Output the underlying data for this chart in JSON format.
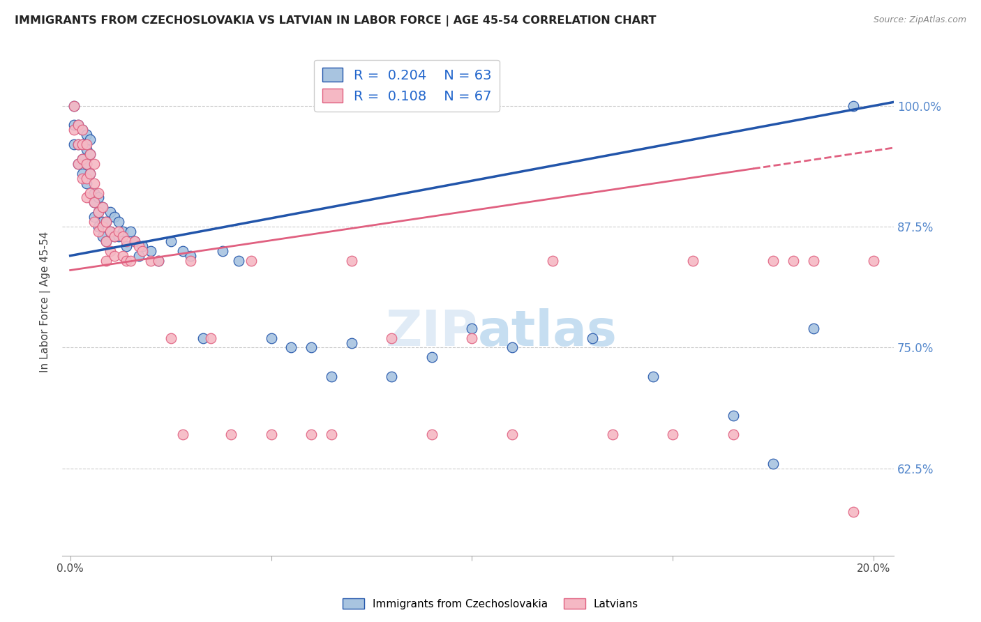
{
  "title": "IMMIGRANTS FROM CZECHOSLOVAKIA VS LATVIAN IN LABOR FORCE | AGE 45-54 CORRELATION CHART",
  "source": "Source: ZipAtlas.com",
  "ylabel_label": "In Labor Force | Age 45-54",
  "legend1_r": "0.204",
  "legend1_n": "63",
  "legend2_r": "0.108",
  "legend2_n": "67",
  "legend1_label": "Immigrants from Czechoslovakia",
  "legend2_label": "Latvians",
  "blue_color": "#a8c4e0",
  "pink_color": "#f5b8c4",
  "line_blue": "#2255aa",
  "line_pink": "#e06080",
  "blue_x": [
    0.001,
    0.001,
    0.001,
    0.002,
    0.002,
    0.002,
    0.003,
    0.003,
    0.003,
    0.003,
    0.004,
    0.004,
    0.004,
    0.004,
    0.005,
    0.005,
    0.005,
    0.006,
    0.006,
    0.006,
    0.007,
    0.007,
    0.007,
    0.008,
    0.008,
    0.008,
    0.009,
    0.009,
    0.01,
    0.01,
    0.011,
    0.011,
    0.012,
    0.012,
    0.013,
    0.014,
    0.015,
    0.016,
    0.017,
    0.018,
    0.02,
    0.022,
    0.025,
    0.028,
    0.03,
    0.033,
    0.038,
    0.042,
    0.05,
    0.055,
    0.06,
    0.065,
    0.07,
    0.08,
    0.09,
    0.1,
    0.11,
    0.13,
    0.145,
    0.165,
    0.175,
    0.185,
    0.195
  ],
  "blue_y": [
    1.0,
    0.98,
    0.96,
    0.98,
    0.96,
    0.94,
    0.975,
    0.96,
    0.945,
    0.93,
    0.97,
    0.955,
    0.94,
    0.92,
    0.965,
    0.95,
    0.93,
    0.91,
    0.9,
    0.885,
    0.905,
    0.89,
    0.875,
    0.895,
    0.88,
    0.865,
    0.88,
    0.86,
    0.89,
    0.87,
    0.885,
    0.865,
    0.88,
    0.865,
    0.87,
    0.855,
    0.87,
    0.86,
    0.845,
    0.855,
    0.85,
    0.84,
    0.86,
    0.85,
    0.845,
    0.76,
    0.85,
    0.84,
    0.76,
    0.75,
    0.75,
    0.72,
    0.755,
    0.72,
    0.74,
    0.77,
    0.75,
    0.76,
    0.72,
    0.68,
    0.63,
    0.77,
    1.0
  ],
  "pink_x": [
    0.001,
    0.001,
    0.002,
    0.002,
    0.002,
    0.003,
    0.003,
    0.003,
    0.003,
    0.004,
    0.004,
    0.004,
    0.004,
    0.005,
    0.005,
    0.005,
    0.006,
    0.006,
    0.006,
    0.006,
    0.007,
    0.007,
    0.007,
    0.008,
    0.008,
    0.009,
    0.009,
    0.009,
    0.01,
    0.01,
    0.011,
    0.011,
    0.012,
    0.013,
    0.013,
    0.014,
    0.014,
    0.015,
    0.016,
    0.017,
    0.018,
    0.02,
    0.022,
    0.025,
    0.028,
    0.03,
    0.035,
    0.04,
    0.045,
    0.05,
    0.06,
    0.065,
    0.07,
    0.08,
    0.09,
    0.1,
    0.11,
    0.12,
    0.135,
    0.15,
    0.155,
    0.165,
    0.175,
    0.18,
    0.185,
    0.195,
    0.2
  ],
  "pink_y": [
    1.0,
    0.975,
    0.98,
    0.96,
    0.94,
    0.975,
    0.96,
    0.945,
    0.925,
    0.96,
    0.94,
    0.925,
    0.905,
    0.95,
    0.93,
    0.91,
    0.94,
    0.92,
    0.9,
    0.88,
    0.91,
    0.89,
    0.87,
    0.895,
    0.875,
    0.88,
    0.86,
    0.84,
    0.87,
    0.85,
    0.865,
    0.845,
    0.87,
    0.865,
    0.845,
    0.86,
    0.84,
    0.84,
    0.86,
    0.855,
    0.85,
    0.84,
    0.84,
    0.76,
    0.66,
    0.84,
    0.76,
    0.66,
    0.84,
    0.66,
    0.66,
    0.66,
    0.84,
    0.76,
    0.66,
    0.76,
    0.66,
    0.84,
    0.66,
    0.66,
    0.84,
    0.66,
    0.84,
    0.84,
    0.84,
    0.58,
    0.84
  ],
  "xlim": [
    -0.002,
    0.205
  ],
  "ylim": [
    0.535,
    1.06
  ],
  "x_tick_positions": [
    0.0,
    0.05,
    0.1,
    0.15,
    0.2
  ],
  "x_tick_labels": [
    "0.0%",
    "",
    "",
    "",
    "20.0%"
  ],
  "y_tick_positions": [
    0.625,
    0.75,
    0.875,
    1.0
  ],
  "y_tick_labels": [
    "62.5%",
    "75.0%",
    "87.5%",
    "100.0%"
  ],
  "background": "#ffffff",
  "grid_color": "#cccccc"
}
